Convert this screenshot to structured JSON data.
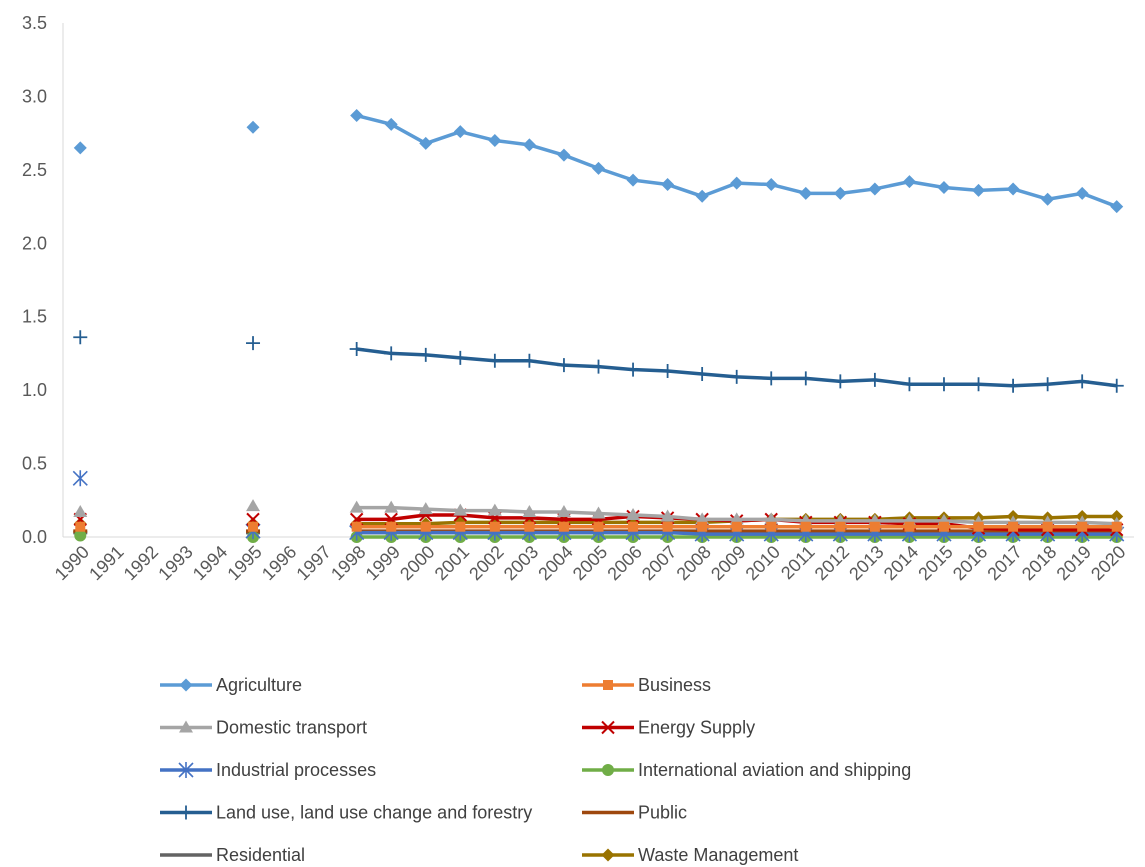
{
  "chart_data": {
    "type": "line",
    "title": "",
    "xlabel": "",
    "ylabel": "",
    "ylim": [
      0,
      3.5
    ],
    "y_ticks": [
      "0.0",
      "0.5",
      "1.0",
      "1.5",
      "2.0",
      "2.5",
      "3.0",
      "3.5"
    ],
    "categories": [
      "1990",
      "1991",
      "1992",
      "1993",
      "1994",
      "1995",
      "1996",
      "1997",
      "1998",
      "1999",
      "2000",
      "2001",
      "2002",
      "2003",
      "2004",
      "2005",
      "2006",
      "2007",
      "2008",
      "2009",
      "2010",
      "2011",
      "2012",
      "2013",
      "2014",
      "2015",
      "2016",
      "2017",
      "2018",
      "2019",
      "2020"
    ],
    "grid": false,
    "legend_position": "bottom",
    "series": [
      {
        "name": "Agriculture",
        "color": "#5B9BD5",
        "marker": "diamond",
        "values": [
          2.65,
          null,
          null,
          null,
          null,
          2.79,
          null,
          null,
          2.87,
          2.81,
          2.68,
          2.76,
          2.7,
          2.67,
          2.6,
          2.51,
          2.43,
          2.4,
          2.32,
          2.41,
          2.4,
          2.34,
          2.34,
          2.37,
          2.42,
          2.38,
          2.36,
          2.37,
          2.3,
          2.34,
          2.25
        ]
      },
      {
        "name": "Business",
        "color": "#ED7D31",
        "marker": "square",
        "values": [
          0.07,
          null,
          null,
          null,
          null,
          0.07,
          null,
          null,
          0.07,
          0.07,
          0.07,
          0.07,
          0.07,
          0.07,
          0.07,
          0.07,
          0.07,
          0.07,
          0.07,
          0.07,
          0.07,
          0.07,
          0.07,
          0.07,
          0.07,
          0.07,
          0.07,
          0.07,
          0.07,
          0.07,
          0.07
        ]
      },
      {
        "name": "Domestic transport",
        "color": "#A5A5A5",
        "marker": "triangle",
        "values": [
          0.17,
          null,
          null,
          null,
          null,
          0.21,
          null,
          null,
          0.2,
          0.2,
          0.19,
          0.18,
          0.18,
          0.17,
          0.17,
          0.16,
          0.15,
          0.14,
          0.12,
          0.12,
          0.12,
          0.11,
          0.11,
          0.11,
          0.11,
          0.11,
          0.1,
          0.1,
          0.1,
          0.1,
          0.09
        ]
      },
      {
        "name": "Energy Supply",
        "color": "#C00000",
        "marker": "x",
        "values": [
          0.12,
          null,
          null,
          null,
          null,
          0.12,
          null,
          null,
          0.12,
          0.12,
          0.15,
          0.15,
          0.13,
          0.13,
          0.12,
          0.12,
          0.14,
          0.13,
          0.12,
          0.11,
          0.12,
          0.1,
          0.1,
          0.1,
          0.09,
          0.09,
          0.06,
          0.05,
          0.05,
          0.05,
          0.05
        ]
      },
      {
        "name": "Industrial processes",
        "color": "#4472C4",
        "marker": "asterisk",
        "values": [
          0.4,
          null,
          null,
          null,
          null,
          0.04,
          null,
          null,
          0.03,
          0.03,
          0.03,
          0.03,
          0.03,
          0.03,
          0.03,
          0.03,
          0.03,
          0.03,
          0.02,
          0.02,
          0.02,
          0.02,
          0.02,
          0.02,
          0.02,
          0.02,
          0.02,
          0.02,
          0.02,
          0.02,
          0.02
        ]
      },
      {
        "name": "International aviation and shipping",
        "color": "#70AD47",
        "marker": "circle",
        "values": [
          0.01,
          null,
          null,
          null,
          null,
          0.0,
          null,
          null,
          0.0,
          0.0,
          0.0,
          0.0,
          0.0,
          0.0,
          0.0,
          0.0,
          0.0,
          0.0,
          0.0,
          0.0,
          0.0,
          0.0,
          0.0,
          0.0,
          0.0,
          0.0,
          0.0,
          0.0,
          0.0,
          0.0,
          0.0
        ]
      },
      {
        "name": "Land use, land use change and forestry",
        "color": "#255E91",
        "marker": "plus",
        "values": [
          1.36,
          null,
          null,
          null,
          null,
          1.32,
          null,
          null,
          1.28,
          1.25,
          1.24,
          1.22,
          1.2,
          1.2,
          1.17,
          1.16,
          1.14,
          1.13,
          1.11,
          1.09,
          1.08,
          1.08,
          1.06,
          1.07,
          1.04,
          1.04,
          1.04,
          1.03,
          1.04,
          1.06,
          1.03
        ]
      },
      {
        "name": "Public",
        "color": "#9E480E",
        "marker": "none",
        "values": [
          0.04,
          null,
          null,
          null,
          null,
          0.04,
          null,
          null,
          0.04,
          0.04,
          0.04,
          0.04,
          0.04,
          0.04,
          0.04,
          0.04,
          0.04,
          0.04,
          0.04,
          0.04,
          0.04,
          0.04,
          0.04,
          0.04,
          0.04,
          0.04,
          0.04,
          0.04,
          0.04,
          0.04,
          0.04
        ]
      },
      {
        "name": "Residential",
        "color": "#636363",
        "marker": "none",
        "values": [
          0.03,
          null,
          null,
          null,
          null,
          0.03,
          null,
          null,
          0.03,
          0.03,
          0.03,
          0.03,
          0.03,
          0.03,
          0.03,
          0.03,
          0.03,
          0.03,
          0.03,
          0.03,
          0.03,
          0.03,
          0.03,
          0.03,
          0.03,
          0.03,
          0.03,
          0.03,
          0.03,
          0.03,
          0.03
        ]
      },
      {
        "name": "Waste Management",
        "color": "#997300",
        "marker": "diamond",
        "values": [
          0.09,
          null,
          null,
          null,
          null,
          0.09,
          null,
          null,
          0.09,
          0.09,
          0.09,
          0.1,
          0.1,
          0.1,
          0.1,
          0.1,
          0.1,
          0.1,
          0.1,
          0.11,
          0.12,
          0.12,
          0.12,
          0.12,
          0.13,
          0.13,
          0.13,
          0.14,
          0.13,
          0.14,
          0.14
        ]
      }
    ]
  }
}
